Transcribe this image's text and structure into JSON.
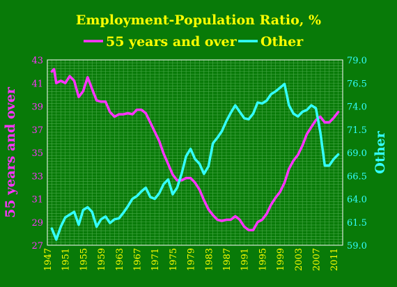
{
  "chart_data": {
    "type": "line",
    "title": "Employment-Population Ratio, %",
    "y_left_label": "55 years and over",
    "y_right_label": "Other",
    "x_range": [
      1947,
      2013
    ],
    "y_left_range": [
      27,
      43
    ],
    "y_right_range": [
      59,
      79
    ],
    "y_left_ticks": [
      "27",
      "29",
      "31",
      "33",
      "35",
      "37",
      "39",
      "41",
      "43"
    ],
    "y_right_ticks": [
      "59.0",
      "61.5",
      "64.0",
      "66.5",
      "69.0",
      "71.5",
      "74.0",
      "76.5",
      "79.0"
    ],
    "x_ticks": [
      "1947",
      "1951",
      "1955",
      "1959",
      "1963",
      "1967",
      "1971",
      "1975",
      "1979",
      "1983",
      "1987",
      "1991",
      "1995",
      "1999",
      "2003",
      "2007",
      "2011"
    ],
    "grid": true,
    "legend_position": "top",
    "colors": {
      "background": "#087a08",
      "grid": "#4aaa4a",
      "title": "#ffff00",
      "series_55": "#ff33ff",
      "series_other": "#33ffff",
      "left_axis_text": "#ff33ff",
      "right_axis_text": "#33ffff",
      "x_axis_text": "#ffff00"
    },
    "series": [
      {
        "name": "55 years and over",
        "axis": "left",
        "color": "#ff33ff",
        "x": [
          1948,
          1948.5,
          1949,
          1950,
          1951,
          1952,
          1953,
          1954,
          1955,
          1956,
          1957,
          1958,
          1959,
          1960,
          1961,
          1962,
          1963,
          1964,
          1965,
          1966,
          1967,
          1968,
          1969,
          1970,
          1971,
          1972,
          1973,
          1974,
          1975,
          1976,
          1977,
          1978,
          1979,
          1980,
          1981,
          1982,
          1983,
          1984,
          1985,
          1986,
          1987,
          1988,
          1989,
          1990,
          1991,
          1992,
          1993,
          1994,
          1995,
          1996,
          1997,
          1998,
          1999,
          2000,
          2001,
          2002,
          2003,
          2004,
          2005,
          2006,
          2007,
          2008,
          2009,
          2010,
          2011,
          2012
        ],
        "y": [
          42.0,
          42.2,
          41.0,
          41.2,
          41.0,
          41.6,
          41.2,
          39.8,
          40.3,
          41.5,
          40.5,
          39.5,
          39.4,
          39.4,
          38.5,
          38.1,
          38.3,
          38.3,
          38.4,
          38.3,
          38.7,
          38.7,
          38.4,
          37.6,
          36.8,
          36.0,
          34.9,
          34.0,
          33.1,
          32.6,
          32.6,
          32.8,
          32.8,
          32.4,
          31.8,
          30.9,
          30.1,
          29.6,
          29.2,
          29.1,
          29.2,
          29.2,
          29.5,
          29.2,
          28.6,
          28.3,
          28.3,
          29.0,
          29.2,
          29.7,
          30.5,
          31.1,
          31.6,
          32.4,
          33.6,
          34.3,
          34.8,
          35.6,
          36.6,
          37.2,
          37.8,
          38.1,
          37.6,
          37.6,
          38.0,
          38.5
        ]
      },
      {
        "name": "Other",
        "axis": "right",
        "color": "#33ffff",
        "x": [
          1948,
          1949,
          1950,
          1951,
          1952,
          1953,
          1954,
          1955,
          1956,
          1957,
          1958,
          1959,
          1960,
          1961,
          1962,
          1963,
          1964,
          1965,
          1966,
          1967,
          1968,
          1969,
          1970,
          1971,
          1972,
          1973,
          1974,
          1975,
          1976,
          1977,
          1978,
          1979,
          1980,
          1981,
          1982,
          1983,
          1984,
          1985,
          1986,
          1987,
          1988,
          1989,
          1990,
          1991,
          1992,
          1993,
          1994,
          1995,
          1996,
          1997,
          1998,
          1999,
          2000,
          2001,
          2002,
          2003,
          2004,
          2005,
          2006,
          2007,
          2008,
          2009,
          2010,
          2011,
          2012
        ],
        "y": [
          60.8,
          59.6,
          61.0,
          62.0,
          62.3,
          62.6,
          61.2,
          62.8,
          63.1,
          62.6,
          61.0,
          61.8,
          62.1,
          61.4,
          61.8,
          61.9,
          62.5,
          63.2,
          64.0,
          64.3,
          64.8,
          65.2,
          64.2,
          64.0,
          64.6,
          65.6,
          66.1,
          64.5,
          65.2,
          66.7,
          68.6,
          69.4,
          68.3,
          67.8,
          66.7,
          67.5,
          70.0,
          70.6,
          71.3,
          72.4,
          73.3,
          74.1,
          73.4,
          72.7,
          72.6,
          73.2,
          74.4,
          74.3,
          74.6,
          75.3,
          75.6,
          76.0,
          76.4,
          74.1,
          73.2,
          72.9,
          73.4,
          73.6,
          74.1,
          73.8,
          71.2,
          67.6,
          67.6,
          68.3,
          68.8
        ]
      }
    ]
  }
}
